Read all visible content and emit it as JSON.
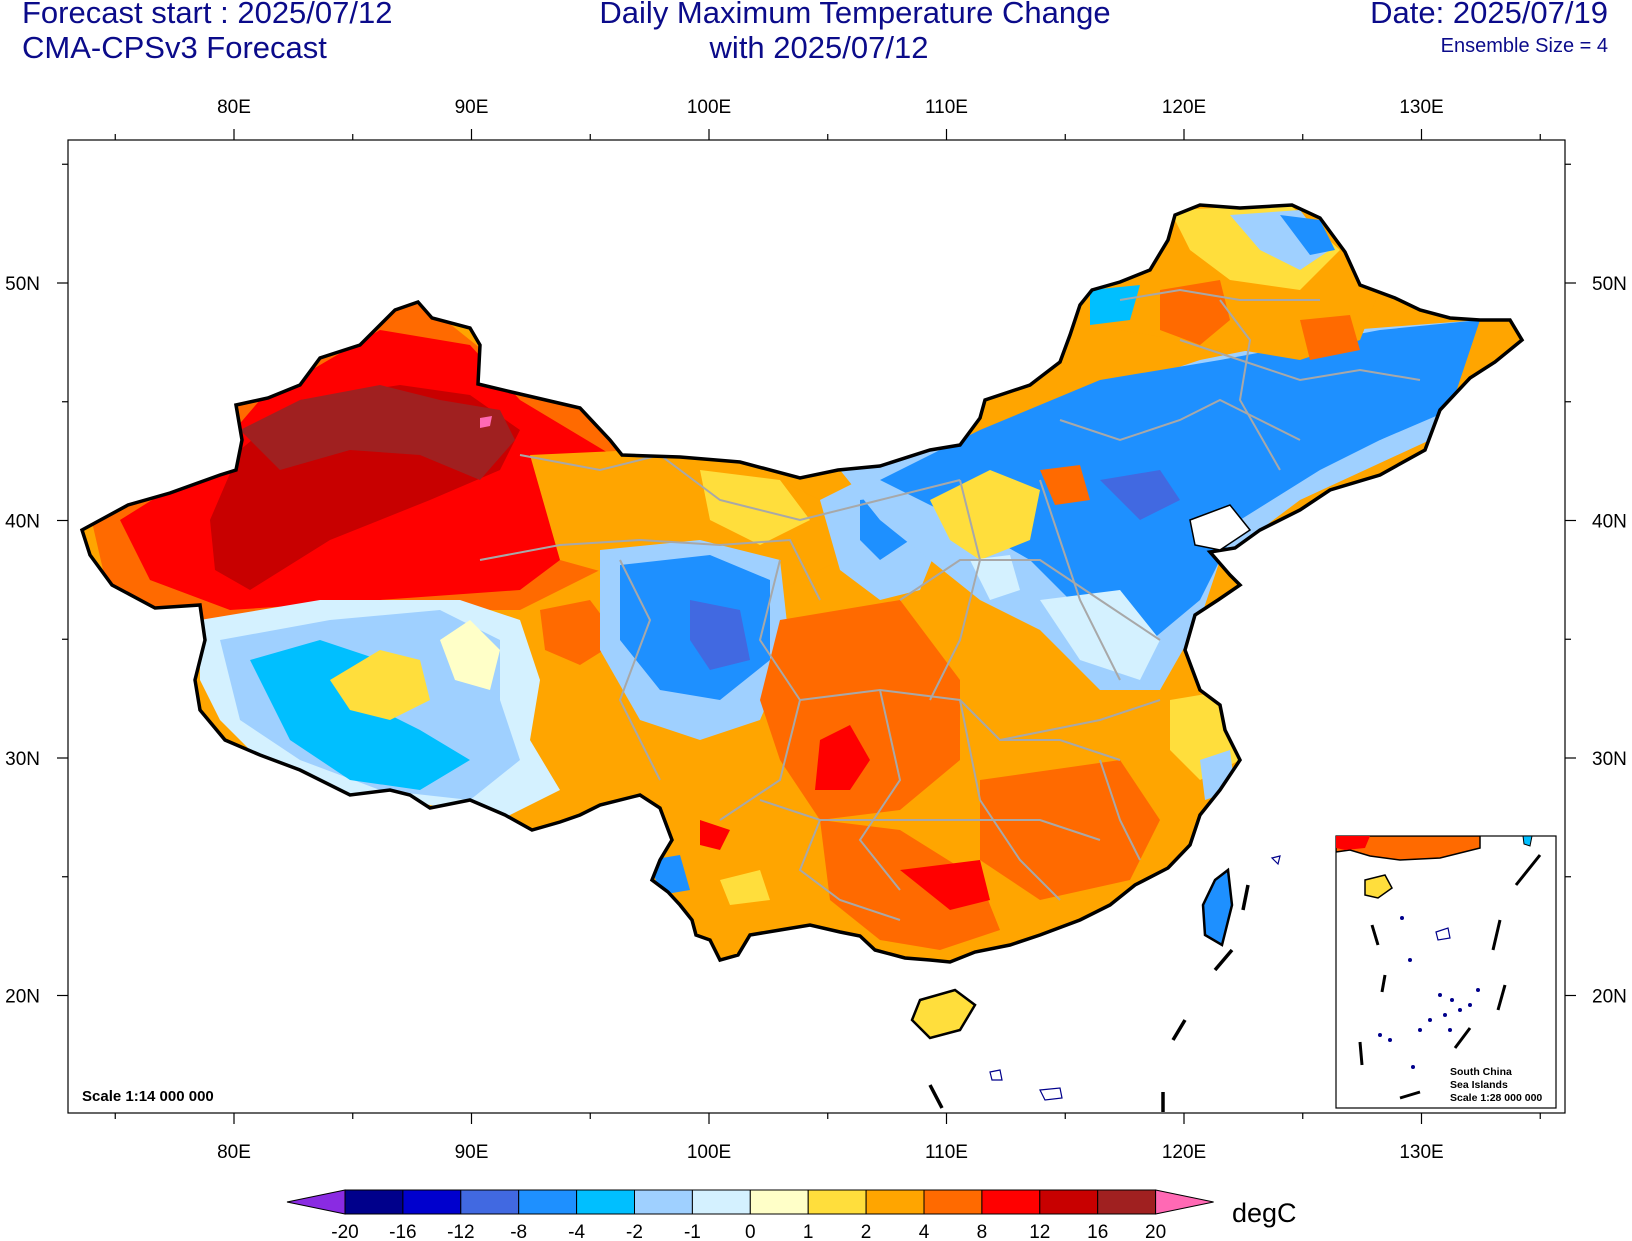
{
  "header": {
    "forecast_start": "Forecast start : 2025/07/12",
    "model": "CMA-CPSv3 Forecast",
    "title_line1": "Daily Maximum Temperature Change",
    "title_line2": "with 2025/07/12",
    "date": "Date: 2025/07/19",
    "ensemble": "Ensemble Size = 4"
  },
  "map": {
    "lon_labels": [
      "80E",
      "90E",
      "100E",
      "110E",
      "120E",
      "130E"
    ],
    "lat_labels": [
      "50N",
      "40N",
      "30N",
      "20N"
    ],
    "scale": "Scale 1:14 000 000",
    "inset": {
      "line1": "South China",
      "line2": "Sea Islands",
      "line3": "Scale 1:28 000 000"
    }
  },
  "colorbar": {
    "unit": "degC",
    "labels": [
      "-20",
      "-16",
      "-12",
      "-8",
      "-4",
      "-2",
      "-1",
      "0",
      "1",
      "2",
      "4",
      "8",
      "12",
      "16",
      "20"
    ],
    "colors": [
      "#8a2be2",
      "#00008b",
      "#0000cd",
      "#4169e1",
      "#1e90ff",
      "#00bfff",
      "#9fd0ff",
      "#d4f1ff",
      "#ffffc8",
      "#ffde3c",
      "#ffa500",
      "#ff6a00",
      "#ff0000",
      "#c80000",
      "#a02020",
      "#ff69b4"
    ]
  }
}
